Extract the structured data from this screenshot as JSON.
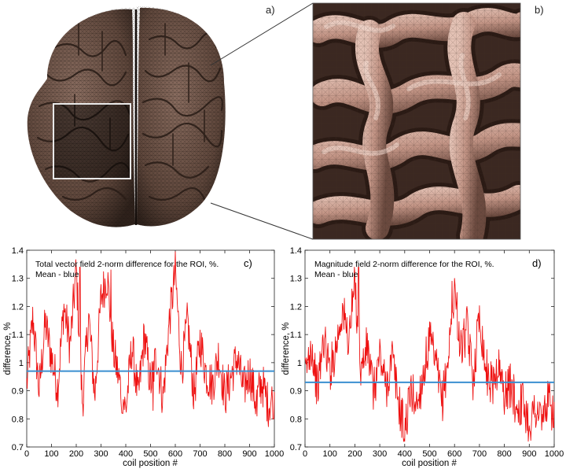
{
  "panels": {
    "a": {
      "label": "a)"
    },
    "b": {
      "label": "b)"
    },
    "c": {
      "label": "c)",
      "annotation_line1": "Total vector field 2-norm difference for the ROI, %.",
      "annotation_line2": "Mean - blue"
    },
    "d": {
      "label": "d)",
      "annotation_line1": "Magnitude field 2-norm difference for the ROI, %.",
      "annotation_line2": "Mean - blue"
    }
  },
  "colors": {
    "series": "#ee1111",
    "mean": "#3a8fd0",
    "brain_tissue": "#6e5448",
    "zoom_tissue": "#c9a294",
    "roi_box": "#e8e8e8"
  },
  "chart_data": [
    {
      "type": "line",
      "xlabel": "coil position #",
      "ylabel": "difference, %",
      "xlim": [
        0,
        1000
      ],
      "ylim": [
        0.7,
        1.4
      ],
      "x_ticks": [
        "0",
        "100",
        "200",
        "300",
        "400",
        "500",
        "600",
        "700",
        "800",
        "900",
        "1000"
      ],
      "y_ticks": [
        "0.7",
        "0.8",
        "0.9",
        "1",
        "1.1",
        "1.2",
        "1.3",
        "1.4"
      ],
      "mean": 0.97,
      "x": [
        0,
        25,
        50,
        75,
        100,
        125,
        150,
        175,
        200,
        225,
        250,
        275,
        300,
        325,
        350,
        375,
        400,
        425,
        450,
        475,
        500,
        525,
        550,
        575,
        600,
        625,
        650,
        675,
        700,
        725,
        750,
        775,
        800,
        825,
        850,
        875,
        900,
        925,
        950,
        975,
        1000
      ],
      "values": [
        0.92,
        1.16,
        0.9,
        1.14,
        1.02,
        0.91,
        1.2,
        1.06,
        1.33,
        0.85,
        1.17,
        0.88,
        1.23,
        1.31,
        1.04,
        0.93,
        0.83,
        1.06,
        0.87,
        1.1,
        0.92,
        1.03,
        0.87,
        1.14,
        1.32,
        0.97,
        1.15,
        0.88,
        1.08,
        0.96,
        0.92,
        1.03,
        0.88,
        0.95,
        1.02,
        0.9,
        0.97,
        0.86,
        0.93,
        0.85,
        0.88
      ],
      "peaks": [
        {
          "x": 215,
          "y": 1.34
        },
        {
          "x": 340,
          "y": 1.33
        },
        {
          "x": 598,
          "y": 1.33
        },
        {
          "x": 385,
          "y": 0.82
        },
        {
          "x": 510,
          "y": 0.83
        },
        {
          "x": 930,
          "y": 0.81
        },
        {
          "x": 995,
          "y": 0.8
        }
      ]
    },
    {
      "type": "line",
      "xlabel": "coil position #",
      "ylabel": "difference, %",
      "xlim": [
        0,
        1000
      ],
      "ylim": [
        0.7,
        1.4
      ],
      "x_ticks": [
        "0",
        "100",
        "200",
        "300",
        "400",
        "500",
        "600",
        "700",
        "800",
        "900",
        "1000"
      ],
      "y_ticks": [
        "0.7",
        "0.8",
        "0.9",
        "1",
        "1.1",
        "1.2",
        "1.3",
        "1.4"
      ],
      "mean": 0.93,
      "x": [
        0,
        25,
        50,
        75,
        100,
        125,
        150,
        175,
        200,
        225,
        250,
        275,
        300,
        325,
        350,
        375,
        400,
        425,
        450,
        475,
        500,
        525,
        550,
        575,
        600,
        625,
        650,
        675,
        700,
        725,
        750,
        775,
        800,
        825,
        850,
        875,
        900,
        925,
        950,
        975,
        1000
      ],
      "values": [
        0.95,
        1.07,
        0.9,
        1.09,
        0.97,
        1.06,
        1.19,
        1.08,
        1.28,
        0.97,
        1.06,
        0.89,
        1.03,
        0.91,
        1.02,
        0.86,
        0.76,
        0.9,
        0.85,
        0.96,
        1.08,
        0.99,
        0.86,
        1.02,
        1.27,
        1.04,
        1.12,
        0.94,
        1.18,
        0.98,
        0.92,
        0.99,
        0.89,
        0.92,
        0.84,
        0.86,
        0.78,
        0.84,
        0.8,
        0.86,
        0.82
      ],
      "peaks": [
        {
          "x": 215,
          "y": 1.34
        },
        {
          "x": 400,
          "y": 0.72
        },
        {
          "x": 590,
          "y": 1.29
        },
        {
          "x": 950,
          "y": 0.76
        }
      ]
    }
  ]
}
